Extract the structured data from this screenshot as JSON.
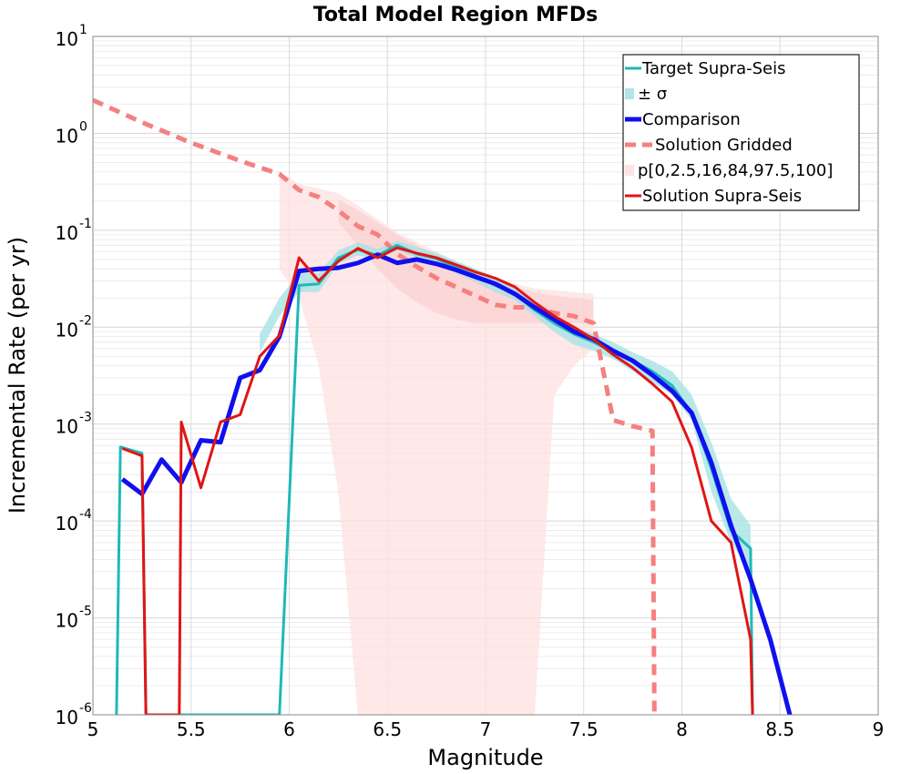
{
  "chart_data": {
    "type": "line",
    "title": "Total Model Region MFDs",
    "xlabel": "Magnitude",
    "ylabel": "Incremental Rate (per yr)",
    "xlim": [
      5,
      9
    ],
    "ylim": [
      1e-06,
      10
    ],
    "yscale": "log",
    "grid": true,
    "legend_position": "top-right",
    "x_ticks": [
      "5",
      "5.5",
      "6",
      "6.5",
      "7",
      "7.5",
      "8",
      "8.5",
      "9"
    ],
    "y_ticks": [
      {
        "base": "10",
        "exp": "-6"
      },
      {
        "base": "10",
        "exp": "-5"
      },
      {
        "base": "10",
        "exp": "-4"
      },
      {
        "base": "10",
        "exp": "-3"
      },
      {
        "base": "10",
        "exp": "-2"
      },
      {
        "base": "10",
        "exp": "-1"
      },
      {
        "base": "10",
        "exp": "0"
      },
      {
        "base": "10",
        "exp": "1"
      }
    ],
    "legend": [
      {
        "label": "Target Supra-Seis",
        "color": "#20b8b8",
        "style": "line"
      },
      {
        "label": "± σ",
        "color": "#b0e4e6",
        "style": "band"
      },
      {
        "label": "Comparison",
        "color": "#1010ee",
        "style": "thick"
      },
      {
        "label": "Solution Gridded",
        "color": "#f58080",
        "style": "dash"
      },
      {
        "label": "p[0,2.5,16,84,97.5,100]",
        "color": "#fde4e4",
        "style": "band"
      },
      {
        "label": "Solution Supra-Seis",
        "color": "#e01515",
        "style": "line"
      }
    ],
    "series": {
      "gridded_band_outer": {
        "x": [
          5.95,
          6.05,
          6.15,
          6.25,
          6.35,
          6.45,
          6.55,
          6.65,
          6.75,
          6.85,
          6.95,
          7.05,
          7.15,
          7.25,
          7.35,
          7.45,
          7.55
        ],
        "upper": [
          0.4,
          0.3,
          0.27,
          0.24,
          0.18,
          0.13,
          0.095,
          0.075,
          0.06,
          0.048,
          0.038,
          0.032,
          0.028,
          0.025,
          0.024,
          0.023,
          0.022
        ],
        "lower": [
          0.04,
          0.02,
          0.004,
          0.0002,
          1e-06,
          1e-06,
          1e-06,
          1e-06,
          1e-06,
          1e-06,
          1e-06,
          1e-06,
          1e-06,
          1e-06,
          0.002,
          0.004,
          0.006
        ]
      },
      "gridded_band_inner": {
        "x": [
          6.25,
          6.35,
          6.45,
          6.55,
          6.65,
          6.75,
          6.85,
          6.95,
          7.05,
          7.15,
          7.25,
          7.35,
          7.45,
          7.55
        ],
        "upper": [
          0.21,
          0.16,
          0.12,
          0.09,
          0.07,
          0.055,
          0.045,
          0.036,
          0.03,
          0.026,
          0.023,
          0.021,
          0.02,
          0.019
        ],
        "lower": [
          0.12,
          0.07,
          0.04,
          0.025,
          0.018,
          0.014,
          0.012,
          0.011,
          0.011,
          0.011,
          0.011,
          0.011,
          0.011,
          0.011
        ]
      },
      "target_sigma": {
        "x": [
          5.85,
          5.95,
          6.05,
          6.15,
          6.25,
          6.35,
          6.45,
          6.55,
          6.65,
          6.75,
          6.85,
          6.95,
          7.05,
          7.15,
          7.25,
          7.35,
          7.45,
          7.55,
          7.65,
          7.75,
          7.85,
          7.95,
          8.05,
          8.15,
          8.25,
          8.35
        ],
        "upper": [
          0.0085,
          0.02,
          0.036,
          0.036,
          0.062,
          0.075,
          0.064,
          0.078,
          0.067,
          0.058,
          0.048,
          0.04,
          0.033,
          0.026,
          0.018,
          0.013,
          0.01,
          0.0085,
          0.007,
          0.0055,
          0.0045,
          0.0035,
          0.002,
          0.00065,
          0.00017,
          9e-05
        ],
        "lower": [
          0.0055,
          0.013,
          0.023,
          0.023,
          0.045,
          0.055,
          0.05,
          0.062,
          0.052,
          0.045,
          0.036,
          0.029,
          0.023,
          0.019,
          0.013,
          0.0089,
          0.0066,
          0.0057,
          0.0047,
          0.0035,
          0.0027,
          0.002,
          0.0011,
          0.0002,
          6e-05,
          3e-05
        ]
      },
      "solution_gridded": {
        "x": [
          5.0,
          5.25,
          5.5,
          5.75,
          5.95,
          6.05,
          6.15,
          6.25,
          6.35,
          6.45,
          6.55,
          6.65,
          6.75,
          6.85,
          6.95,
          7.05,
          7.15,
          7.25,
          7.35,
          7.45,
          7.55,
          7.65,
          7.75,
          7.85,
          7.86
        ],
        "y": [
          2.2,
          1.3,
          0.8,
          0.52,
          0.38,
          0.26,
          0.22,
          0.16,
          0.11,
          0.09,
          0.057,
          0.042,
          0.032,
          0.026,
          0.021,
          0.017,
          0.016,
          0.016,
          0.014,
          0.013,
          0.011,
          0.0011,
          0.00095,
          0.00085,
          1e-06
        ]
      },
      "target_supra_seis": {
        "x": [
          5.12,
          5.14,
          5.25,
          5.27,
          5.35,
          5.45,
          5.55,
          5.65,
          5.75,
          5.85,
          5.95,
          6.05,
          6.15,
          6.25,
          6.35,
          6.45,
          6.55,
          6.65,
          6.75,
          6.85,
          6.95,
          7.05,
          7.15,
          7.25,
          7.35,
          7.45,
          7.55,
          7.65,
          7.75,
          7.85,
          7.95,
          8.05,
          8.15,
          8.25,
          8.35,
          8.36
        ],
        "y": [
          1e-06,
          0.00058,
          0.0005,
          1e-06,
          1e-06,
          1e-06,
          1e-06,
          1e-06,
          1e-06,
          1e-06,
          1e-06,
          0.027,
          0.028,
          0.052,
          0.063,
          0.055,
          0.07,
          0.057,
          0.051,
          0.041,
          0.034,
          0.027,
          0.022,
          0.015,
          0.011,
          0.0085,
          0.007,
          0.0055,
          0.0045,
          0.0035,
          0.0025,
          0.0013,
          0.00035,
          8e-05,
          5.2e-05,
          1e-06
        ]
      },
      "comparison": {
        "x": [
          5.15,
          5.25,
          5.35,
          5.45,
          5.55,
          5.65,
          5.75,
          5.85,
          5.95,
          6.05,
          6.15,
          6.25,
          6.35,
          6.45,
          6.55,
          6.65,
          6.75,
          6.85,
          6.95,
          7.05,
          7.15,
          7.25,
          7.35,
          7.45,
          7.55,
          7.65,
          7.75,
          7.85,
          7.95,
          8.05,
          8.15,
          8.25,
          8.35,
          8.45,
          8.55
        ],
        "y": [
          0.00027,
          0.00019,
          0.00043,
          0.00025,
          0.00068,
          0.00065,
          0.003,
          0.0036,
          0.008,
          0.038,
          0.04,
          0.041,
          0.046,
          0.056,
          0.046,
          0.05,
          0.045,
          0.039,
          0.033,
          0.028,
          0.022,
          0.016,
          0.012,
          0.009,
          0.0075,
          0.0057,
          0.0045,
          0.0032,
          0.0022,
          0.0013,
          0.0004,
          9e-05,
          2.5e-05,
          6e-06,
          8e-07
        ]
      },
      "solution_supra_seis": {
        "x": [
          5.15,
          5.25,
          5.27,
          5.44,
          5.45,
          5.55,
          5.65,
          5.75,
          5.85,
          5.95,
          6.05,
          6.15,
          6.25,
          6.35,
          6.45,
          6.55,
          6.65,
          6.75,
          6.85,
          6.95,
          7.05,
          7.15,
          7.25,
          7.35,
          7.45,
          7.55,
          7.65,
          7.75,
          7.85,
          7.95,
          8.05,
          8.15,
          8.25,
          8.35,
          8.36
        ],
        "y": [
          0.00056,
          0.00047,
          1e-06,
          1e-06,
          0.00105,
          0.00022,
          0.00105,
          0.00125,
          0.005,
          0.0082,
          0.052,
          0.03,
          0.048,
          0.065,
          0.052,
          0.066,
          0.058,
          0.052,
          0.044,
          0.037,
          0.032,
          0.026,
          0.018,
          0.013,
          0.01,
          0.0075,
          0.0052,
          0.0038,
          0.0026,
          0.0017,
          0.00057,
          0.0001,
          6e-05,
          6e-06,
          1e-06
        ]
      }
    }
  }
}
